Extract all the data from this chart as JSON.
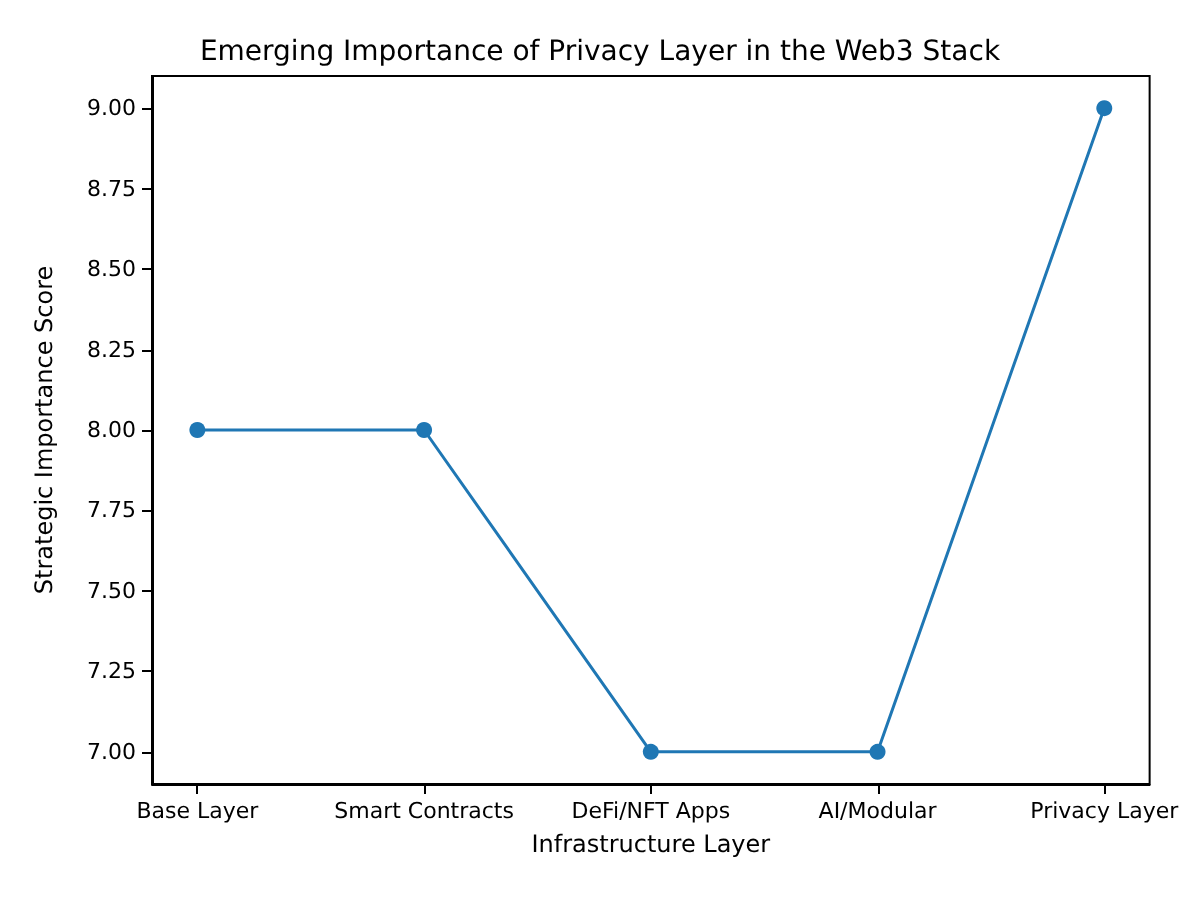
{
  "chart_data": {
    "type": "line",
    "title": "Emerging Importance of Privacy Layer in the Web3 Stack",
    "xlabel": "Infrastructure Layer",
    "ylabel": "Strategic Importance Score",
    "categories": [
      "Base Layer",
      "Smart Contracts",
      "DeFi/NFT Apps",
      "AI/Modular",
      "Privacy Layer"
    ],
    "series": [
      {
        "color": "#1f77b4",
        "values": [
          8,
          8,
          7,
          7,
          9
        ]
      }
    ],
    "ylim": [
      6.9,
      9.1
    ],
    "yticks": [
      {
        "value": 7,
        "label": "7.00"
      },
      {
        "value": 7.25,
        "label": "7.25"
      },
      {
        "value": 7.5,
        "label": "7.50"
      },
      {
        "value": 7.75,
        "label": "7.75"
      },
      {
        "value": 8,
        "label": "8.00"
      },
      {
        "value": 8.25,
        "label": "8.25"
      },
      {
        "value": 8.5,
        "label": "8.50"
      },
      {
        "value": 8.75,
        "label": "8.75"
      },
      {
        "value": 9,
        "label": "9.00"
      }
    ],
    "grid": false,
    "marker": "circle",
    "line_style": "solid"
  }
}
